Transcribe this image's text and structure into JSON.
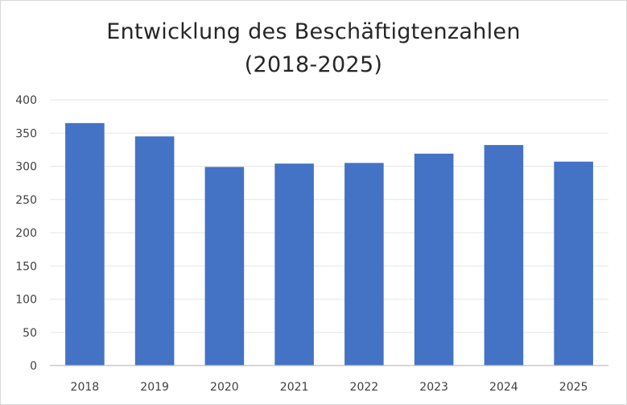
{
  "chart_data": {
    "type": "bar",
    "title": [
      "Entwicklung des Beschäftigtenzahlen",
      "(2018-2025)"
    ],
    "categories": [
      "2018",
      "2019",
      "2020",
      "2021",
      "2022",
      "2023",
      "2024",
      "2025"
    ],
    "values": [
      365,
      345,
      299,
      304,
      305,
      319,
      332,
      307
    ],
    "ylim": [
      0,
      400
    ],
    "yticks": [
      "0",
      "50",
      "100",
      "150",
      "200",
      "250",
      "300",
      "350",
      "400"
    ],
    "xlabel": "",
    "ylabel": "",
    "grid": true,
    "legend": "none",
    "bar_color": "#4472c4",
    "gridline_color": "#e6e6e6",
    "axis_color": "#bfbfbf"
  }
}
